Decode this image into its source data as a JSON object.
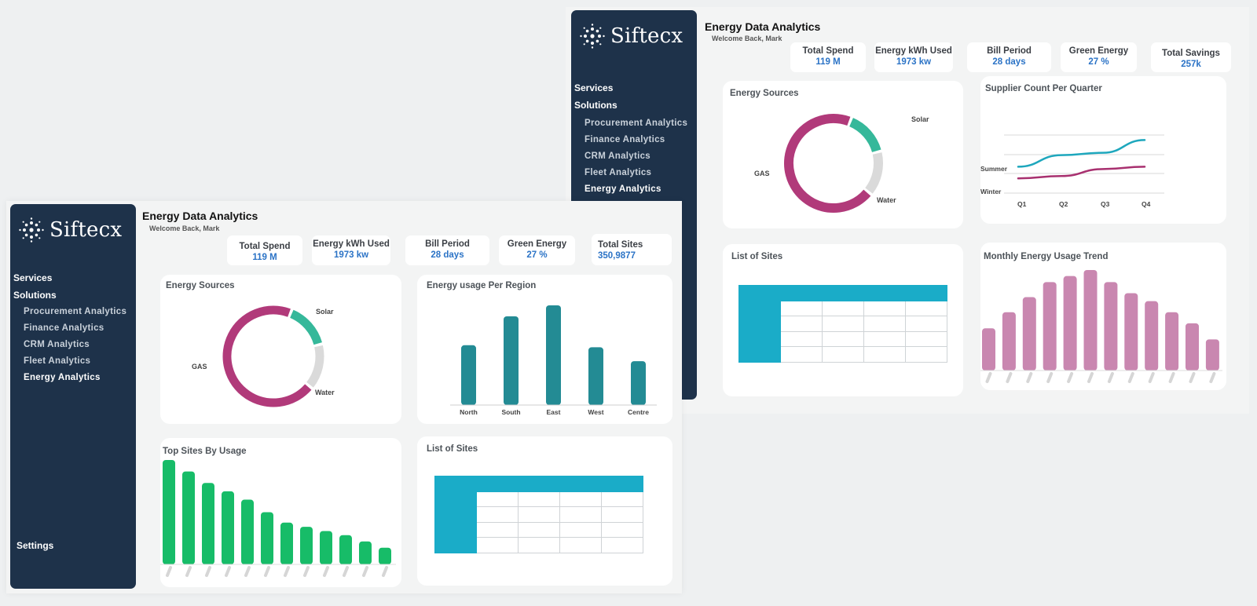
{
  "brand": {
    "name": "Siftecx"
  },
  "colors": {
    "sidebar": "#1e324a",
    "gas": "#b13a7a",
    "solar": "#35b89a",
    "water": "#dadada",
    "region_bar": "#238b94",
    "sites_bar": "#17bc68",
    "monthly_bar": "#c987b0",
    "summer": "#1ea7bd",
    "winter": "#a8306f",
    "table_header": "#1aacc8",
    "kpi_value": "#2b73c6"
  },
  "nav": {
    "main": [
      "Services",
      "Solutions"
    ],
    "sub": [
      "Procurement Analytics",
      "Finance Analytics",
      "CRM Analytics",
      "Fleet Analytics",
      "Energy Analytics"
    ],
    "settings": "Settings"
  },
  "header": {
    "title": "Energy Data Analytics",
    "welcome": "Welcome Back, Mark"
  },
  "front": {
    "kpis": [
      {
        "label": "Total Spend",
        "value": "119 M"
      },
      {
        "label": "Energy kWh Used",
        "value": "1973 kw"
      },
      {
        "label": "Bill Period",
        "value": "28 days"
      },
      {
        "label": "Green Energy",
        "value": "27 %"
      },
      {
        "label": "Total Sites",
        "value": "350,9877"
      }
    ],
    "cards": {
      "energy_sources": "Energy Sources",
      "region": "Energy usage Per Region",
      "top_sites": "Top Sites By Usage",
      "list_sites": "List of Sites"
    }
  },
  "back": {
    "kpis": [
      {
        "label": "Total Spend",
        "value": "119 M"
      },
      {
        "label": "Energy kWh Used",
        "value": "1973 kw"
      },
      {
        "label": "Bill Period",
        "value": "28 days"
      },
      {
        "label": "Green Energy",
        "value": "27 %"
      },
      {
        "label": "Total Savings",
        "value": "257k"
      }
    ],
    "cards": {
      "energy_sources": "Energy Sources",
      "supplier": "Supplier Count Per Quarter",
      "list_sites": "List of Sites",
      "monthly": "Monthly Energy Usage Trend"
    }
  },
  "chart_data": [
    {
      "type": "pie",
      "title": "Energy Sources",
      "labels": [
        "GAS",
        "Solar",
        "Water"
      ],
      "values": [
        70,
        15,
        15
      ]
    },
    {
      "type": "bar",
      "title": "Energy usage Per Region",
      "categories": [
        "North",
        "South",
        "East",
        "West",
        "Centre"
      ],
      "values": [
        60,
        89,
        100,
        58,
        44
      ],
      "ylim": [
        0,
        100
      ]
    },
    {
      "type": "bar",
      "title": "Top Sites By Usage",
      "values": [
        100,
        89,
        78,
        70,
        62,
        50,
        40,
        36,
        32,
        28,
        22,
        16
      ],
      "ylim": [
        0,
        100
      ]
    },
    {
      "type": "line",
      "title": "Supplier Count Per Quarter",
      "categories": [
        "Q1",
        "Q2",
        "Q3",
        "Q4"
      ],
      "series": [
        {
          "name": "Summer",
          "values": [
            2,
            3,
            3.2,
            4.3
          ]
        },
        {
          "name": "Winter",
          "values": [
            1,
            1.2,
            1.8,
            2
          ]
        }
      ],
      "ylim": [
        0,
        5
      ]
    },
    {
      "type": "bar",
      "title": "Monthly Energy Usage Trend",
      "values": [
        42,
        58,
        73,
        88,
        94,
        100,
        88,
        77,
        69,
        58,
        47,
        31
      ],
      "ylim": [
        0,
        100
      ]
    }
  ]
}
